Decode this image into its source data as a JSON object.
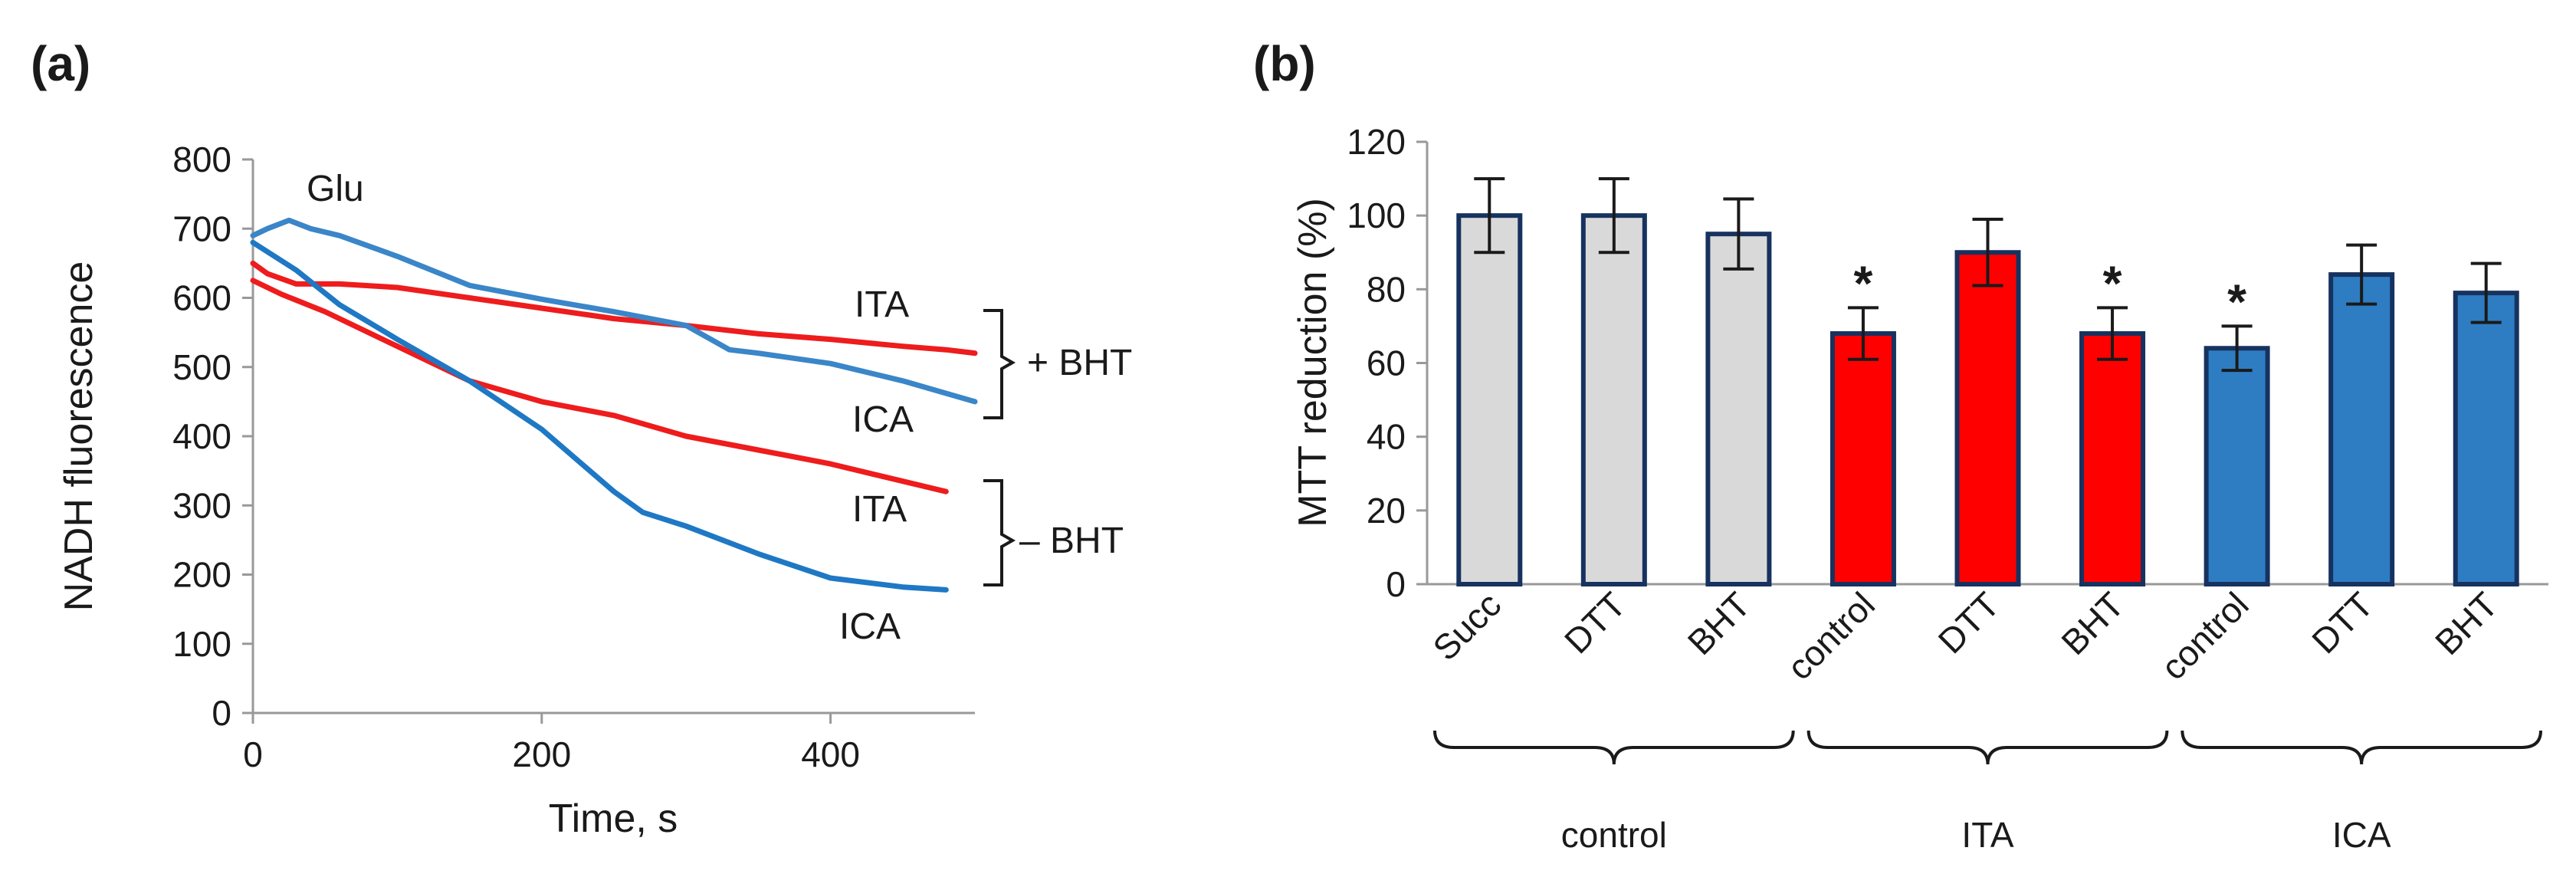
{
  "chart_data": [
    {
      "panel": "(a)",
      "type": "line",
      "title": "",
      "xlabel": "Time, s",
      "ylabel": "NADH fluorescence",
      "xlim": [
        0,
        500
      ],
      "ylim": [
        0,
        800
      ],
      "xticks": [
        0,
        200,
        400
      ],
      "yticks": [
        0,
        100,
        200,
        300,
        400,
        500,
        600,
        700,
        800
      ],
      "annotations": {
        "glu": "Glu",
        "plus_bht": "+ BHT",
        "minus_bht": "– BHT"
      },
      "colors": {
        "ITA": "#ee1c1c",
        "ICA_plus": "#3a86c8",
        "ICA_minus": "#1f78c4"
      },
      "series": [
        {
          "name": "ITA",
          "condition": "+ BHT",
          "color": "#ee1c1c",
          "x": [
            0,
            10,
            30,
            60,
            100,
            150,
            200,
            250,
            300,
            350,
            400,
            450,
            480,
            500
          ],
          "y": [
            650,
            635,
            620,
            620,
            615,
            600,
            585,
            570,
            560,
            548,
            540,
            530,
            525,
            520
          ]
        },
        {
          "name": "ICA",
          "condition": "+ BHT",
          "color": "#3a86c8",
          "x": [
            0,
            10,
            25,
            40,
            60,
            100,
            150,
            200,
            250,
            300,
            330,
            350,
            400,
            450,
            500
          ],
          "y": [
            690,
            700,
            712,
            700,
            690,
            660,
            618,
            598,
            580,
            560,
            525,
            520,
            505,
            480,
            450
          ]
        },
        {
          "name": "ITA",
          "condition": "– BHT",
          "color": "#ee1c1c",
          "x": [
            0,
            20,
            50,
            100,
            150,
            200,
            250,
            300,
            350,
            400,
            450,
            480
          ],
          "y": [
            625,
            605,
            580,
            530,
            480,
            450,
            430,
            400,
            380,
            360,
            335,
            320
          ]
        },
        {
          "name": "ICA",
          "condition": "– BHT",
          "color": "#1f78c4",
          "x": [
            0,
            30,
            60,
            100,
            150,
            200,
            250,
            270,
            300,
            350,
            400,
            450,
            480
          ],
          "y": [
            680,
            640,
            590,
            540,
            480,
            410,
            320,
            290,
            270,
            230,
            195,
            182,
            178
          ]
        }
      ],
      "line_labels": [
        "ITA",
        "ICA",
        "ITA",
        "ICA"
      ]
    },
    {
      "panel": "(b)",
      "type": "bar",
      "title": "",
      "xlabel": "",
      "ylabel": "MTT reduction (%)",
      "ylim": [
        0,
        120
      ],
      "yticks": [
        0,
        20,
        40,
        60,
        80,
        100,
        120
      ],
      "categories": [
        "Succ",
        "DTT",
        "BHT",
        "control",
        "DTT",
        "BHT",
        "control",
        "DTT",
        "BHT"
      ],
      "values": [
        100,
        100,
        95,
        68,
        90,
        68,
        64,
        84,
        79
      ],
      "errors": [
        10,
        10,
        9.5,
        7,
        9,
        7,
        6,
        8,
        8
      ],
      "significant": [
        false,
        false,
        false,
        true,
        false,
        true,
        true,
        false,
        false
      ],
      "significance_marker": "*",
      "bar_colors": [
        "#d9d9d9",
        "#d9d9d9",
        "#d9d9d9",
        "#ff0000",
        "#ff0000",
        "#ff0000",
        "#2e7dc3",
        "#2e7dc3",
        "#2e7dc3"
      ],
      "edge_color": "#17325f",
      "groups": [
        {
          "label": "control",
          "members": [
            0,
            1,
            2
          ]
        },
        {
          "label": "ITA",
          "members": [
            3,
            4,
            5
          ]
        },
        {
          "label": "ICA",
          "members": [
            6,
            7,
            8
          ]
        }
      ]
    }
  ]
}
